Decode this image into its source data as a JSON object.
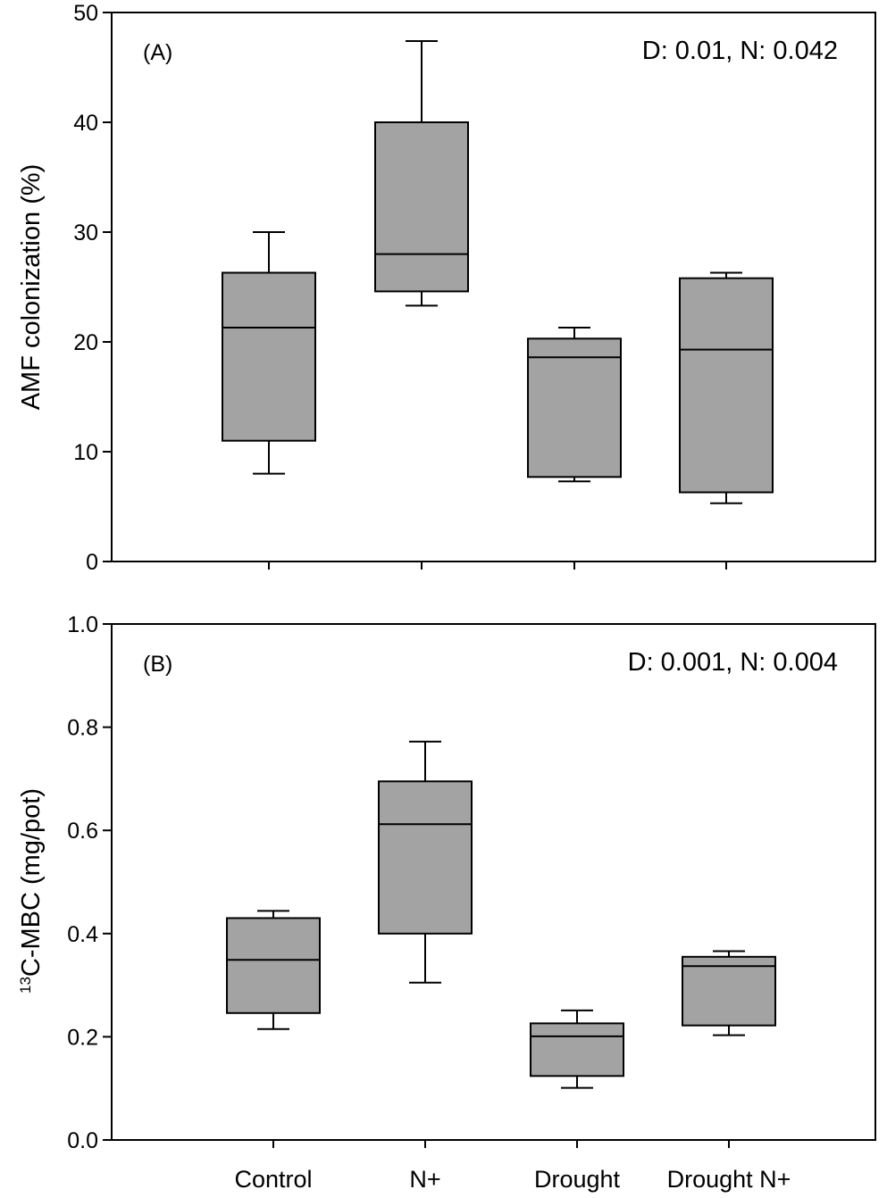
{
  "chart_data": [
    {
      "type": "box",
      "panel_label": "(A)",
      "annotation": "D: 0.01, N: 0.042",
      "title": "",
      "xlabel": "",
      "ylabel": "AMF colonization (%)",
      "ylim": [
        0,
        50
      ],
      "yticks": [
        0,
        10,
        20,
        30,
        40,
        50
      ],
      "yticklabels": [
        "0",
        "10",
        "20",
        "30",
        "40",
        "50"
      ],
      "categories": [
        "Control",
        "N+",
        "Drought",
        "Drought N+"
      ],
      "show_category_labels": false,
      "boxes": [
        {
          "name": "Control",
          "whisker_low": 8.0,
          "q1": 11.0,
          "median": 21.3,
          "q3": 26.3,
          "whisker_high": 30.0
        },
        {
          "name": "N+",
          "whisker_low": 23.3,
          "q1": 24.6,
          "median": 28.0,
          "q3": 40.0,
          "whisker_high": 47.4
        },
        {
          "name": "Drought",
          "whisker_low": 7.3,
          "q1": 7.7,
          "median": 18.6,
          "q3": 20.3,
          "whisker_high": 21.3
        },
        {
          "name": "Drought N+",
          "whisker_low": 5.3,
          "q1": 6.3,
          "median": 19.3,
          "q3": 25.8,
          "whisker_high": 26.3
        }
      ],
      "box_color": "#a3a3a3"
    },
    {
      "type": "box",
      "panel_label": "(B)",
      "annotation": "D: 0.001, N: 0.004",
      "title": "",
      "xlabel": "",
      "ylabel_sup": "13",
      "ylabel": "C-MBC (mg/pot)",
      "ylim": [
        0,
        1.0
      ],
      "yticks": [
        0,
        0.2,
        0.4,
        0.6,
        0.8,
        1.0
      ],
      "yticklabels": [
        "0.0",
        "0.2",
        "0.4",
        "0.6",
        "0.8",
        "1.0"
      ],
      "categories": [
        "Control",
        "N+",
        "Drought",
        "Drought N+"
      ],
      "show_category_labels": true,
      "boxes": [
        {
          "name": "Control",
          "whisker_low": 0.215,
          "q1": 0.246,
          "median": 0.349,
          "q3": 0.43,
          "whisker_high": 0.444
        },
        {
          "name": "N+",
          "whisker_low": 0.305,
          "q1": 0.4,
          "median": 0.612,
          "q3": 0.695,
          "whisker_high": 0.772
        },
        {
          "name": "Drought",
          "whisker_low": 0.101,
          "q1": 0.124,
          "median": 0.201,
          "q3": 0.226,
          "whisker_high": 0.251
        },
        {
          "name": "Drought N+",
          "whisker_low": 0.203,
          "q1": 0.222,
          "median": 0.337,
          "q3": 0.355,
          "whisker_high": 0.366
        }
      ],
      "box_color": "#a3a3a3"
    }
  ]
}
